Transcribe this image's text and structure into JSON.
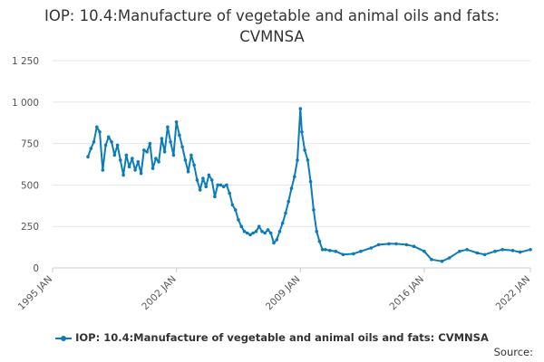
{
  "title_line1": "IOP: 10.4:Manufacture of vegetable and animal oils and fats:",
  "title_line2": "CVMNSA",
  "legend_label": "IOP: 10.4:Manufacture of vegetable and animal oils and fats: CVMNSA",
  "source_label": "Source:",
  "colors": {
    "series": "#0b7cba",
    "grid": "#e6e6e6"
  },
  "chart_data": {
    "type": "line",
    "title": "IOP: 10.4:Manufacture of vegetable and animal oils and fats: CVMNSA",
    "xlabel": "",
    "ylabel": "",
    "ylim": [
      0,
      1250
    ],
    "xlim": [
      "1995 JAN",
      "2022 JAN"
    ],
    "yticks": [
      0,
      250,
      500,
      750,
      1000,
      1250
    ],
    "ytick_labels": [
      "0",
      "250",
      "500",
      "750",
      "1 000",
      "1 250"
    ],
    "xticks": [
      "1995 JAN",
      "2002 JAN",
      "2009 JAN",
      "2016 JAN",
      "2022 JAN"
    ],
    "grid": true,
    "legend": "bottom",
    "series": [
      {
        "name": "IOP: 10.4:Manufacture of vegetable and animal oils and fats: CVMNSA",
        "points": [
          [
            "1997-01",
            670
          ],
          [
            "1997-03",
            720
          ],
          [
            "1997-05",
            760
          ],
          [
            "1997-07",
            850
          ],
          [
            "1997-09",
            820
          ],
          [
            "1997-11",
            590
          ],
          [
            "1998-01",
            740
          ],
          [
            "1998-03",
            790
          ],
          [
            "1998-05",
            760
          ],
          [
            "1998-07",
            680
          ],
          [
            "1998-09",
            740
          ],
          [
            "1998-11",
            650
          ],
          [
            "1999-01",
            560
          ],
          [
            "1999-03",
            680
          ],
          [
            "1999-05",
            610
          ],
          [
            "1999-07",
            660
          ],
          [
            "1999-09",
            590
          ],
          [
            "1999-11",
            640
          ],
          [
            "2000-01",
            570
          ],
          [
            "2000-03",
            710
          ],
          [
            "2000-05",
            700
          ],
          [
            "2000-07",
            750
          ],
          [
            "2000-09",
            600
          ],
          [
            "2000-11",
            660
          ],
          [
            "2001-01",
            640
          ],
          [
            "2001-03",
            780
          ],
          [
            "2001-05",
            700
          ],
          [
            "2001-07",
            850
          ],
          [
            "2001-09",
            760
          ],
          [
            "2001-11",
            680
          ],
          [
            "2002-01",
            880
          ],
          [
            "2002-03",
            800
          ],
          [
            "2002-05",
            730
          ],
          [
            "2002-07",
            650
          ],
          [
            "2002-09",
            580
          ],
          [
            "2002-11",
            680
          ],
          [
            "2003-01",
            620
          ],
          [
            "2003-03",
            530
          ],
          [
            "2003-05",
            470
          ],
          [
            "2003-07",
            540
          ],
          [
            "2003-09",
            490
          ],
          [
            "2003-11",
            560
          ],
          [
            "2004-01",
            530
          ],
          [
            "2004-03",
            430
          ],
          [
            "2004-05",
            500
          ],
          [
            "2004-07",
            500
          ],
          [
            "2004-09",
            490
          ],
          [
            "2004-11",
            500
          ],
          [
            "2005-01",
            450
          ],
          [
            "2005-03",
            380
          ],
          [
            "2005-05",
            350
          ],
          [
            "2005-07",
            290
          ],
          [
            "2005-09",
            250
          ],
          [
            "2005-11",
            220
          ],
          [
            "2006-01",
            210
          ],
          [
            "2006-03",
            200
          ],
          [
            "2006-05",
            210
          ],
          [
            "2006-07",
            220
          ],
          [
            "2006-09",
            250
          ],
          [
            "2006-11",
            220
          ],
          [
            "2007-01",
            210
          ],
          [
            "2007-03",
            230
          ],
          [
            "2007-05",
            210
          ],
          [
            "2007-07",
            150
          ],
          [
            "2007-09",
            170
          ],
          [
            "2007-11",
            220
          ],
          [
            "2008-01",
            270
          ],
          [
            "2008-03",
            330
          ],
          [
            "2008-05",
            400
          ],
          [
            "2008-07",
            480
          ],
          [
            "2008-09",
            550
          ],
          [
            "2008-11",
            650
          ],
          [
            "2009-01",
            960
          ],
          [
            "2009-02",
            820
          ],
          [
            "2009-04",
            710
          ],
          [
            "2009-06",
            650
          ],
          [
            "2009-08",
            520
          ],
          [
            "2009-10",
            350
          ],
          [
            "2009-12",
            220
          ],
          [
            "2010-02",
            160
          ],
          [
            "2010-04",
            110
          ],
          [
            "2010-06",
            110
          ],
          [
            "2010-09",
            105
          ],
          [
            "2011-01",
            100
          ],
          [
            "2011-06",
            80
          ],
          [
            "2012-01",
            85
          ],
          [
            "2012-06",
            100
          ],
          [
            "2013-01",
            120
          ],
          [
            "2013-06",
            140
          ],
          [
            "2014-01",
            145
          ],
          [
            "2014-06",
            145
          ],
          [
            "2015-01",
            140
          ],
          [
            "2015-06",
            130
          ],
          [
            "2016-01",
            100
          ],
          [
            "2016-06",
            50
          ],
          [
            "2017-01",
            40
          ],
          [
            "2017-06",
            60
          ],
          [
            "2018-01",
            100
          ],
          [
            "2018-06",
            110
          ],
          [
            "2019-01",
            90
          ],
          [
            "2019-06",
            80
          ],
          [
            "2020-01",
            100
          ],
          [
            "2020-06",
            110
          ],
          [
            "2021-01",
            105
          ],
          [
            "2021-06",
            95
          ],
          [
            "2022-01",
            110
          ]
        ]
      }
    ]
  }
}
